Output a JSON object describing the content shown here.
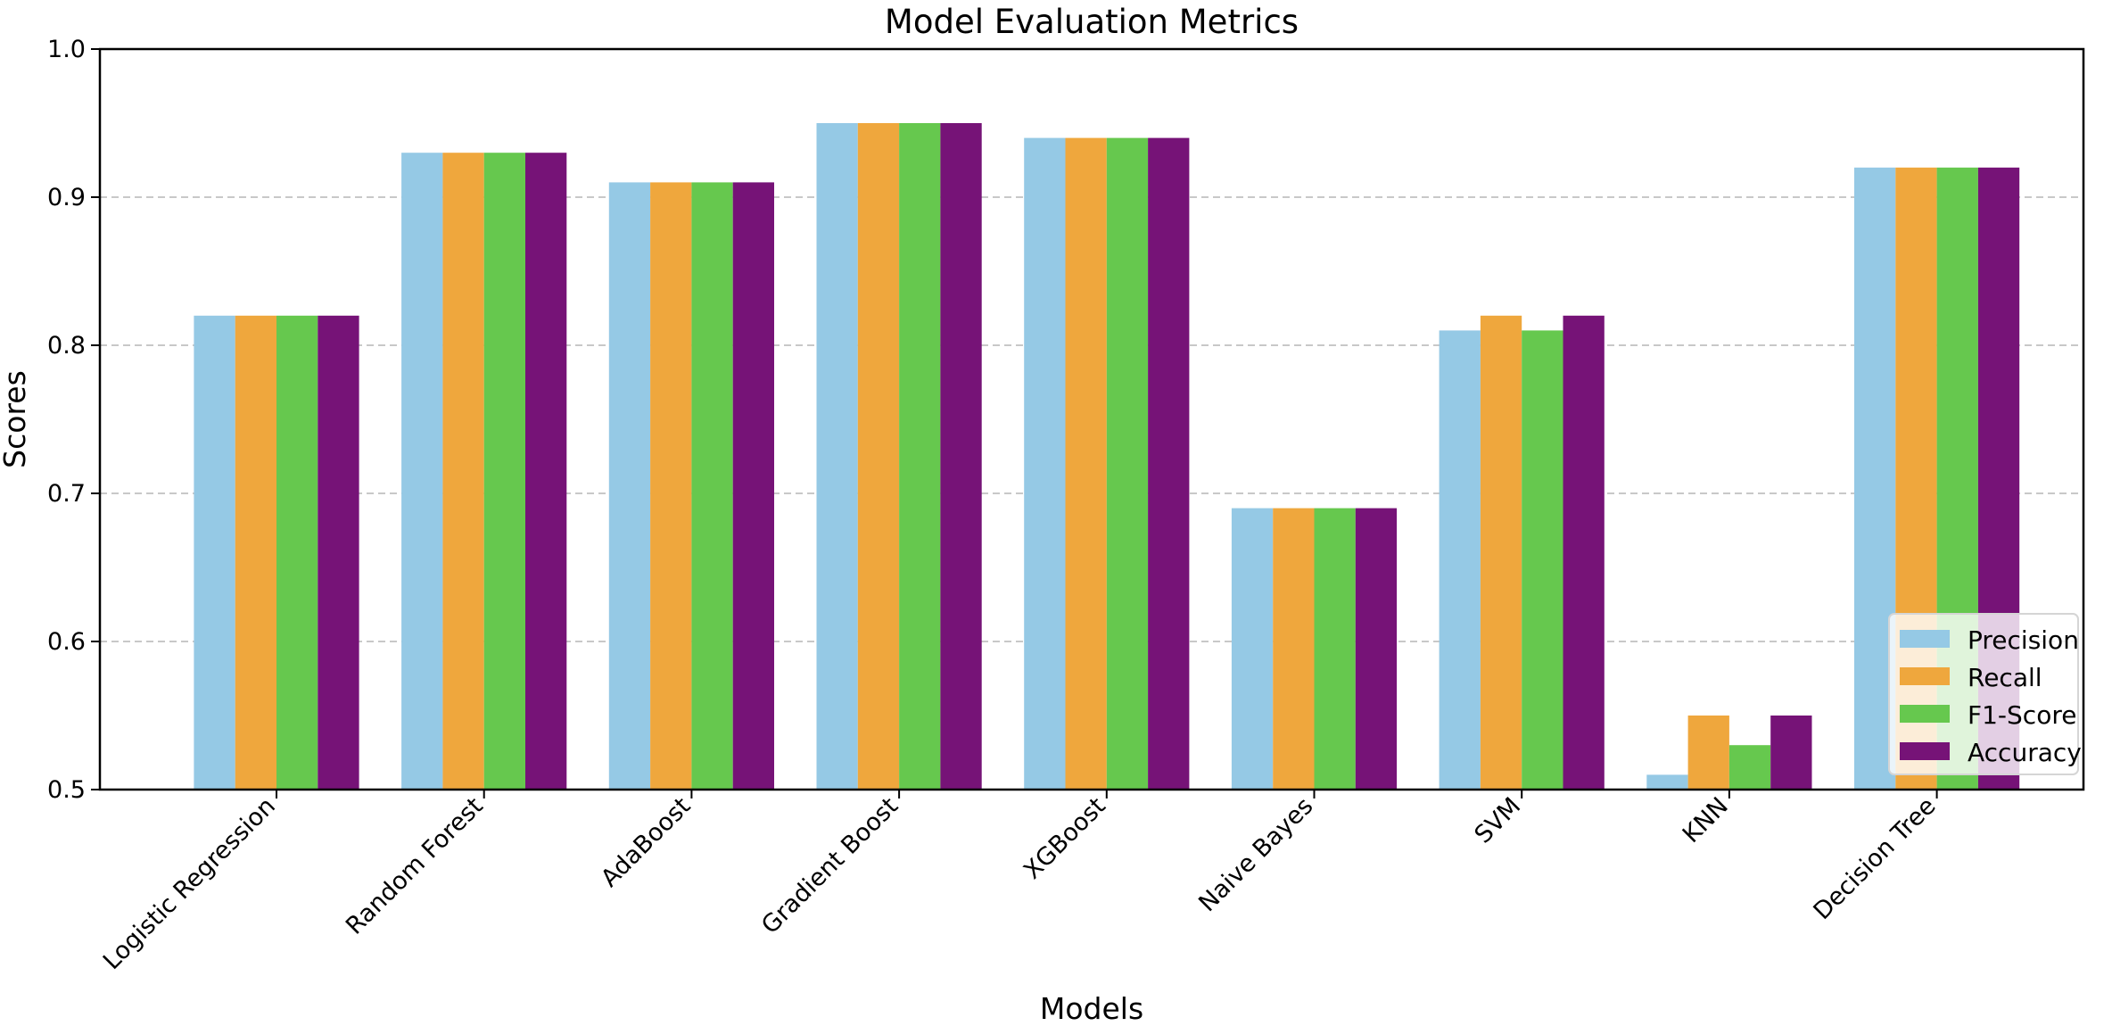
{
  "chart_data": {
    "type": "bar",
    "title": "Model Evaluation Metrics",
    "xlabel": "Models",
    "ylabel": "Scores",
    "ylim": [
      0.5,
      1.0
    ],
    "yticks": [
      "0.5",
      "0.6",
      "0.7",
      "0.8",
      "0.9",
      "1.0"
    ],
    "grid": "horizontal dashed",
    "legend_position": "bottom-right",
    "categories": [
      "Logistic Regression",
      "Random Forest",
      "AdaBoost",
      "Gradient Boost",
      "XGBoost",
      "Naive Bayes",
      "SVM",
      "KNN",
      "Decision Tree"
    ],
    "series": [
      {
        "name": "Precision",
        "color": "#95c9e5",
        "values": [
          0.82,
          0.93,
          0.91,
          0.95,
          0.94,
          0.69,
          0.81,
          0.51,
          0.92
        ]
      },
      {
        "name": "Recall",
        "color": "#efa73d",
        "values": [
          0.82,
          0.93,
          0.91,
          0.95,
          0.94,
          0.69,
          0.82,
          0.55,
          0.92
        ]
      },
      {
        "name": "F1-Score",
        "color": "#66c84e",
        "values": [
          0.82,
          0.93,
          0.91,
          0.95,
          0.94,
          0.69,
          0.81,
          0.53,
          0.92
        ]
      },
      {
        "name": "Accuracy",
        "color": "#761377",
        "values": [
          0.82,
          0.93,
          0.91,
          0.95,
          0.94,
          0.69,
          0.82,
          0.55,
          0.92
        ]
      }
    ]
  }
}
